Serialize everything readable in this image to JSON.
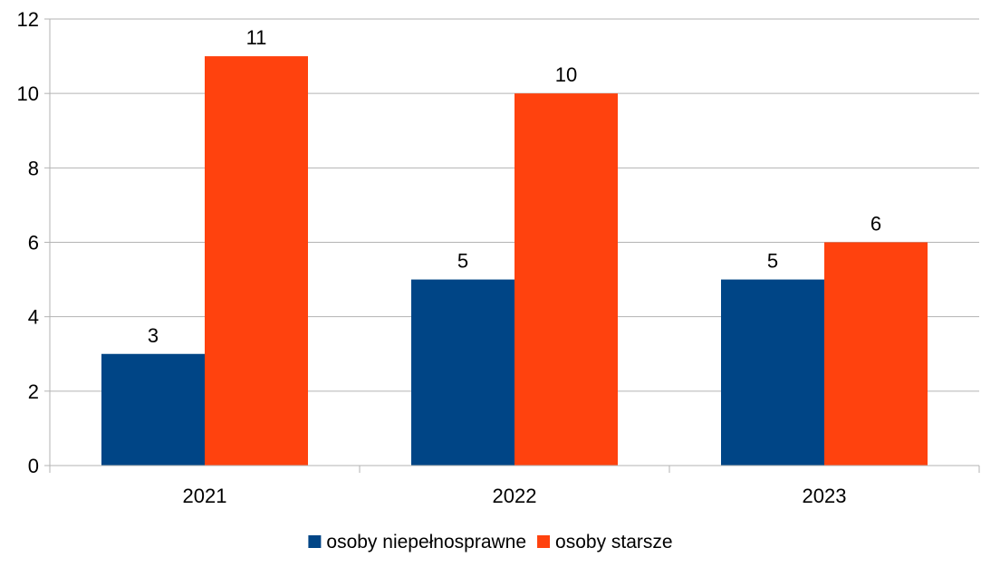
{
  "chart_data": {
    "type": "bar",
    "categories": [
      "2021",
      "2022",
      "2023"
    ],
    "series": [
      {
        "name": "osoby niepełnosprawne",
        "values": [
          3,
          5,
          5
        ],
        "color": "#004586"
      },
      {
        "name": "osoby starsze",
        "values": [
          11,
          10,
          6
        ],
        "color": "#ff420e"
      }
    ],
    "ylim": [
      0,
      12
    ],
    "yticks": [
      0,
      2,
      4,
      6,
      8,
      10,
      12
    ],
    "grid": true,
    "data_labels": true,
    "legend_position": "bottom",
    "gridline_color": "#b3b3b3"
  }
}
